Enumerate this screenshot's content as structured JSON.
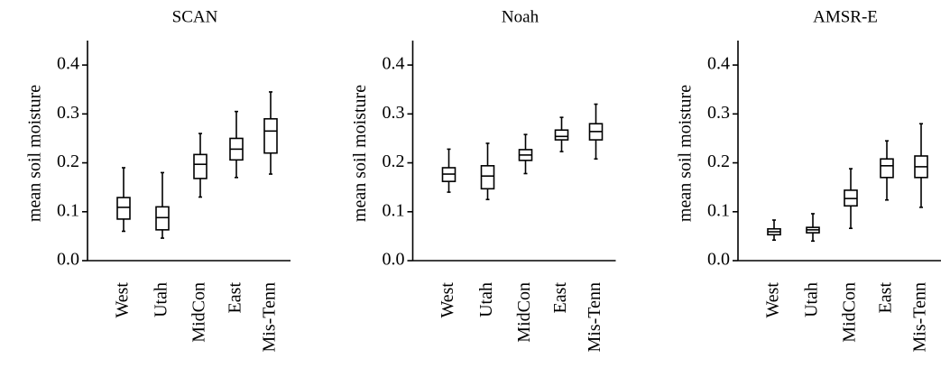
{
  "chart_data": [
    {
      "type": "box",
      "title": "SCAN",
      "y_label": "mean soil moisture",
      "categories": [
        "West",
        "Utah",
        "MidCon",
        "East",
        "Mis-Tenn"
      ],
      "whisker_low": [
        0.06,
        0.046,
        0.13,
        0.17,
        0.177
      ],
      "q1": [
        0.085,
        0.063,
        0.168,
        0.206,
        0.22
      ],
      "median": [
        0.109,
        0.088,
        0.197,
        0.228,
        0.265
      ],
      "q3": [
        0.129,
        0.11,
        0.217,
        0.25,
        0.29
      ],
      "whisker_high": [
        0.19,
        0.18,
        0.26,
        0.305,
        0.345
      ],
      "ylim": [
        0,
        0.45
      ],
      "yticks": [
        {
          "value": 0,
          "label": "0.0"
        },
        0.1,
        0.2,
        0.3,
        0.4
      ]
    },
    {
      "type": "box",
      "title": "Noah",
      "y_label": "mean soil moisture",
      "categories": [
        "West",
        "Utah",
        "MidCon",
        "East",
        "Mis-Tenn"
      ],
      "whisker_low": [
        0.14,
        0.125,
        0.178,
        0.223,
        0.208
      ],
      "q1": [
        0.162,
        0.147,
        0.205,
        0.247,
        0.247
      ],
      "median": [
        0.177,
        0.173,
        0.216,
        0.254,
        0.264
      ],
      "q3": [
        0.19,
        0.194,
        0.227,
        0.267,
        0.28
      ],
      "whisker_high": [
        0.228,
        0.24,
        0.258,
        0.293,
        0.32
      ],
      "ylim": [
        0,
        0.45
      ],
      "yticks": [
        {
          "value": 0,
          "label": "0.0"
        },
        0.1,
        0.2,
        0.3,
        0.4
      ]
    },
    {
      "type": "box",
      "title": "AMSR-E",
      "y_label": "mean soil moisture",
      "categories": [
        "West",
        "Utah",
        "MidCon",
        "East",
        "Mis-Tenn"
      ],
      "whisker_low": [
        0.042,
        0.04,
        0.066,
        0.124,
        0.109
      ],
      "q1": [
        0.053,
        0.057,
        0.112,
        0.17,
        0.17
      ],
      "median": [
        0.059,
        0.063,
        0.127,
        0.194,
        0.192
      ],
      "q3": [
        0.065,
        0.068,
        0.144,
        0.208,
        0.214
      ],
      "whisker_high": [
        0.083,
        0.096,
        0.188,
        0.245,
        0.28
      ],
      "ylim": [
        0,
        0.45
      ],
      "yticks": [
        {
          "value": 0,
          "label": "0.0"
        },
        0.1,
        0.2,
        0.3,
        0.4
      ]
    }
  ]
}
